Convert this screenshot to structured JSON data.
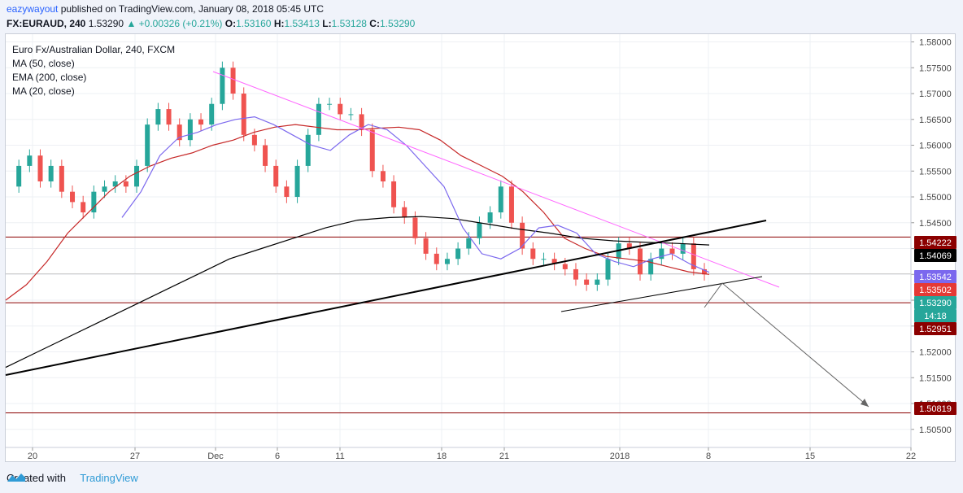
{
  "header": {
    "author": "eazywayout",
    "published": "published on TradingView.com, January 08, 2018 05:45 UTC",
    "symbol": "FX:EURAUD, 240",
    "last": "1.53290",
    "change": "▲ +0.00326 (+0.21%)",
    "o_label": "O:",
    "o_value": "1.53160",
    "h_label": "H:",
    "h_value": "1.53413",
    "l_label": "L:",
    "l_value": "1.53128",
    "c_label": "C:",
    "c_value": "1.53290"
  },
  "legend": {
    "title": "Euro Fx/Australian Dollar, 240, FXCM",
    "ma50": "MA (50, close)",
    "ema200": "EMA (200, close)",
    "ma20": "MA (20, close)"
  },
  "footer": {
    "created_with": "Created with",
    "brand": "TradingView"
  },
  "colors": {
    "up": "#26a69a",
    "down": "#ef5350",
    "ma50": "#c62828",
    "ema200": "#000000",
    "ma20": "#7b68ee",
    "downtrend": "#ff66ff",
    "hline": "#8b0000",
    "projection": "#666666"
  },
  "chart_data": {
    "type": "line",
    "instrument": "FX:EURAUD, 240",
    "ylim": [
      1.5015,
      1.5815
    ],
    "y_ticks": [
      "1.58000",
      "1.57500",
      "1.57000",
      "1.56500",
      "1.56000",
      "1.55500",
      "1.55000",
      "1.54500",
      "1.54000",
      "1.53500",
      "1.53000",
      "1.52500",
      "1.52000",
      "1.51500",
      "1.51000",
      "1.50500"
    ],
    "x_ticks": [
      "20",
      "27",
      "Dec",
      "6",
      "11",
      "18",
      "21",
      "2018",
      "8",
      "15",
      "22"
    ],
    "price_labels": [
      {
        "value": "1.54222",
        "color": "#8b0000",
        "text_color": "#ffffff"
      },
      {
        "value": "1.54069",
        "color": "#000000",
        "text_color": "#ffffff"
      },
      {
        "value": "1.53542",
        "color": "#7b68ee",
        "text_color": "#ffffff"
      },
      {
        "value": "1.53502",
        "color": "#e53935",
        "text_color": "#ffffff"
      },
      {
        "value": "1.53290",
        "color": "#26a69a",
        "text_color": "#ffffff"
      },
      {
        "value": "14:18",
        "color": "#26a69a",
        "text_color": "#ffffff"
      },
      {
        "value": "1.52951",
        "color": "#8b0000",
        "text_color": "#ffffff"
      },
      {
        "value": "1.50819",
        "color": "#8b0000",
        "text_color": "#ffffff"
      }
    ],
    "horizontal_levels": [
      1.54222,
      1.52951,
      1.50819
    ],
    "series": [
      {
        "name": "MA (50, close)",
        "values": [
          1.53,
          1.533,
          1.5375,
          1.543,
          1.547,
          1.551,
          1.554,
          1.556,
          1.5575,
          1.5585,
          1.56,
          1.561,
          1.5625,
          1.5635,
          1.564,
          1.5635,
          1.563,
          1.563,
          1.5633,
          1.5635,
          1.563,
          1.561,
          1.558,
          1.556,
          1.554,
          1.551,
          1.547,
          1.542,
          1.54,
          1.5385,
          1.538,
          1.5375,
          1.5365,
          1.5355,
          1.535
        ]
      },
      {
        "name": "EMA (200, close)",
        "values": [
          1.517,
          1.52,
          1.523,
          1.526,
          1.529,
          1.532,
          1.535,
          1.538,
          1.54,
          1.542,
          1.544,
          1.5455,
          1.546,
          1.5462,
          1.5458,
          1.5448,
          1.5438,
          1.543,
          1.542,
          1.5415,
          1.5412,
          1.541,
          1.5407
        ]
      },
      {
        "name": "MA (20, close)",
        "values": [
          1.546,
          1.551,
          1.558,
          1.5615,
          1.5625,
          1.564,
          1.565,
          1.5655,
          1.564,
          1.562,
          1.56,
          1.559,
          1.562,
          1.564,
          1.563,
          1.56,
          1.556,
          1.552,
          1.544,
          1.539,
          1.538,
          1.54,
          1.544,
          1.5445,
          1.543,
          1.539,
          1.5375,
          1.5365,
          1.538,
          1.539,
          1.537,
          1.5354
        ]
      }
    ],
    "last_price": 1.5329
  }
}
